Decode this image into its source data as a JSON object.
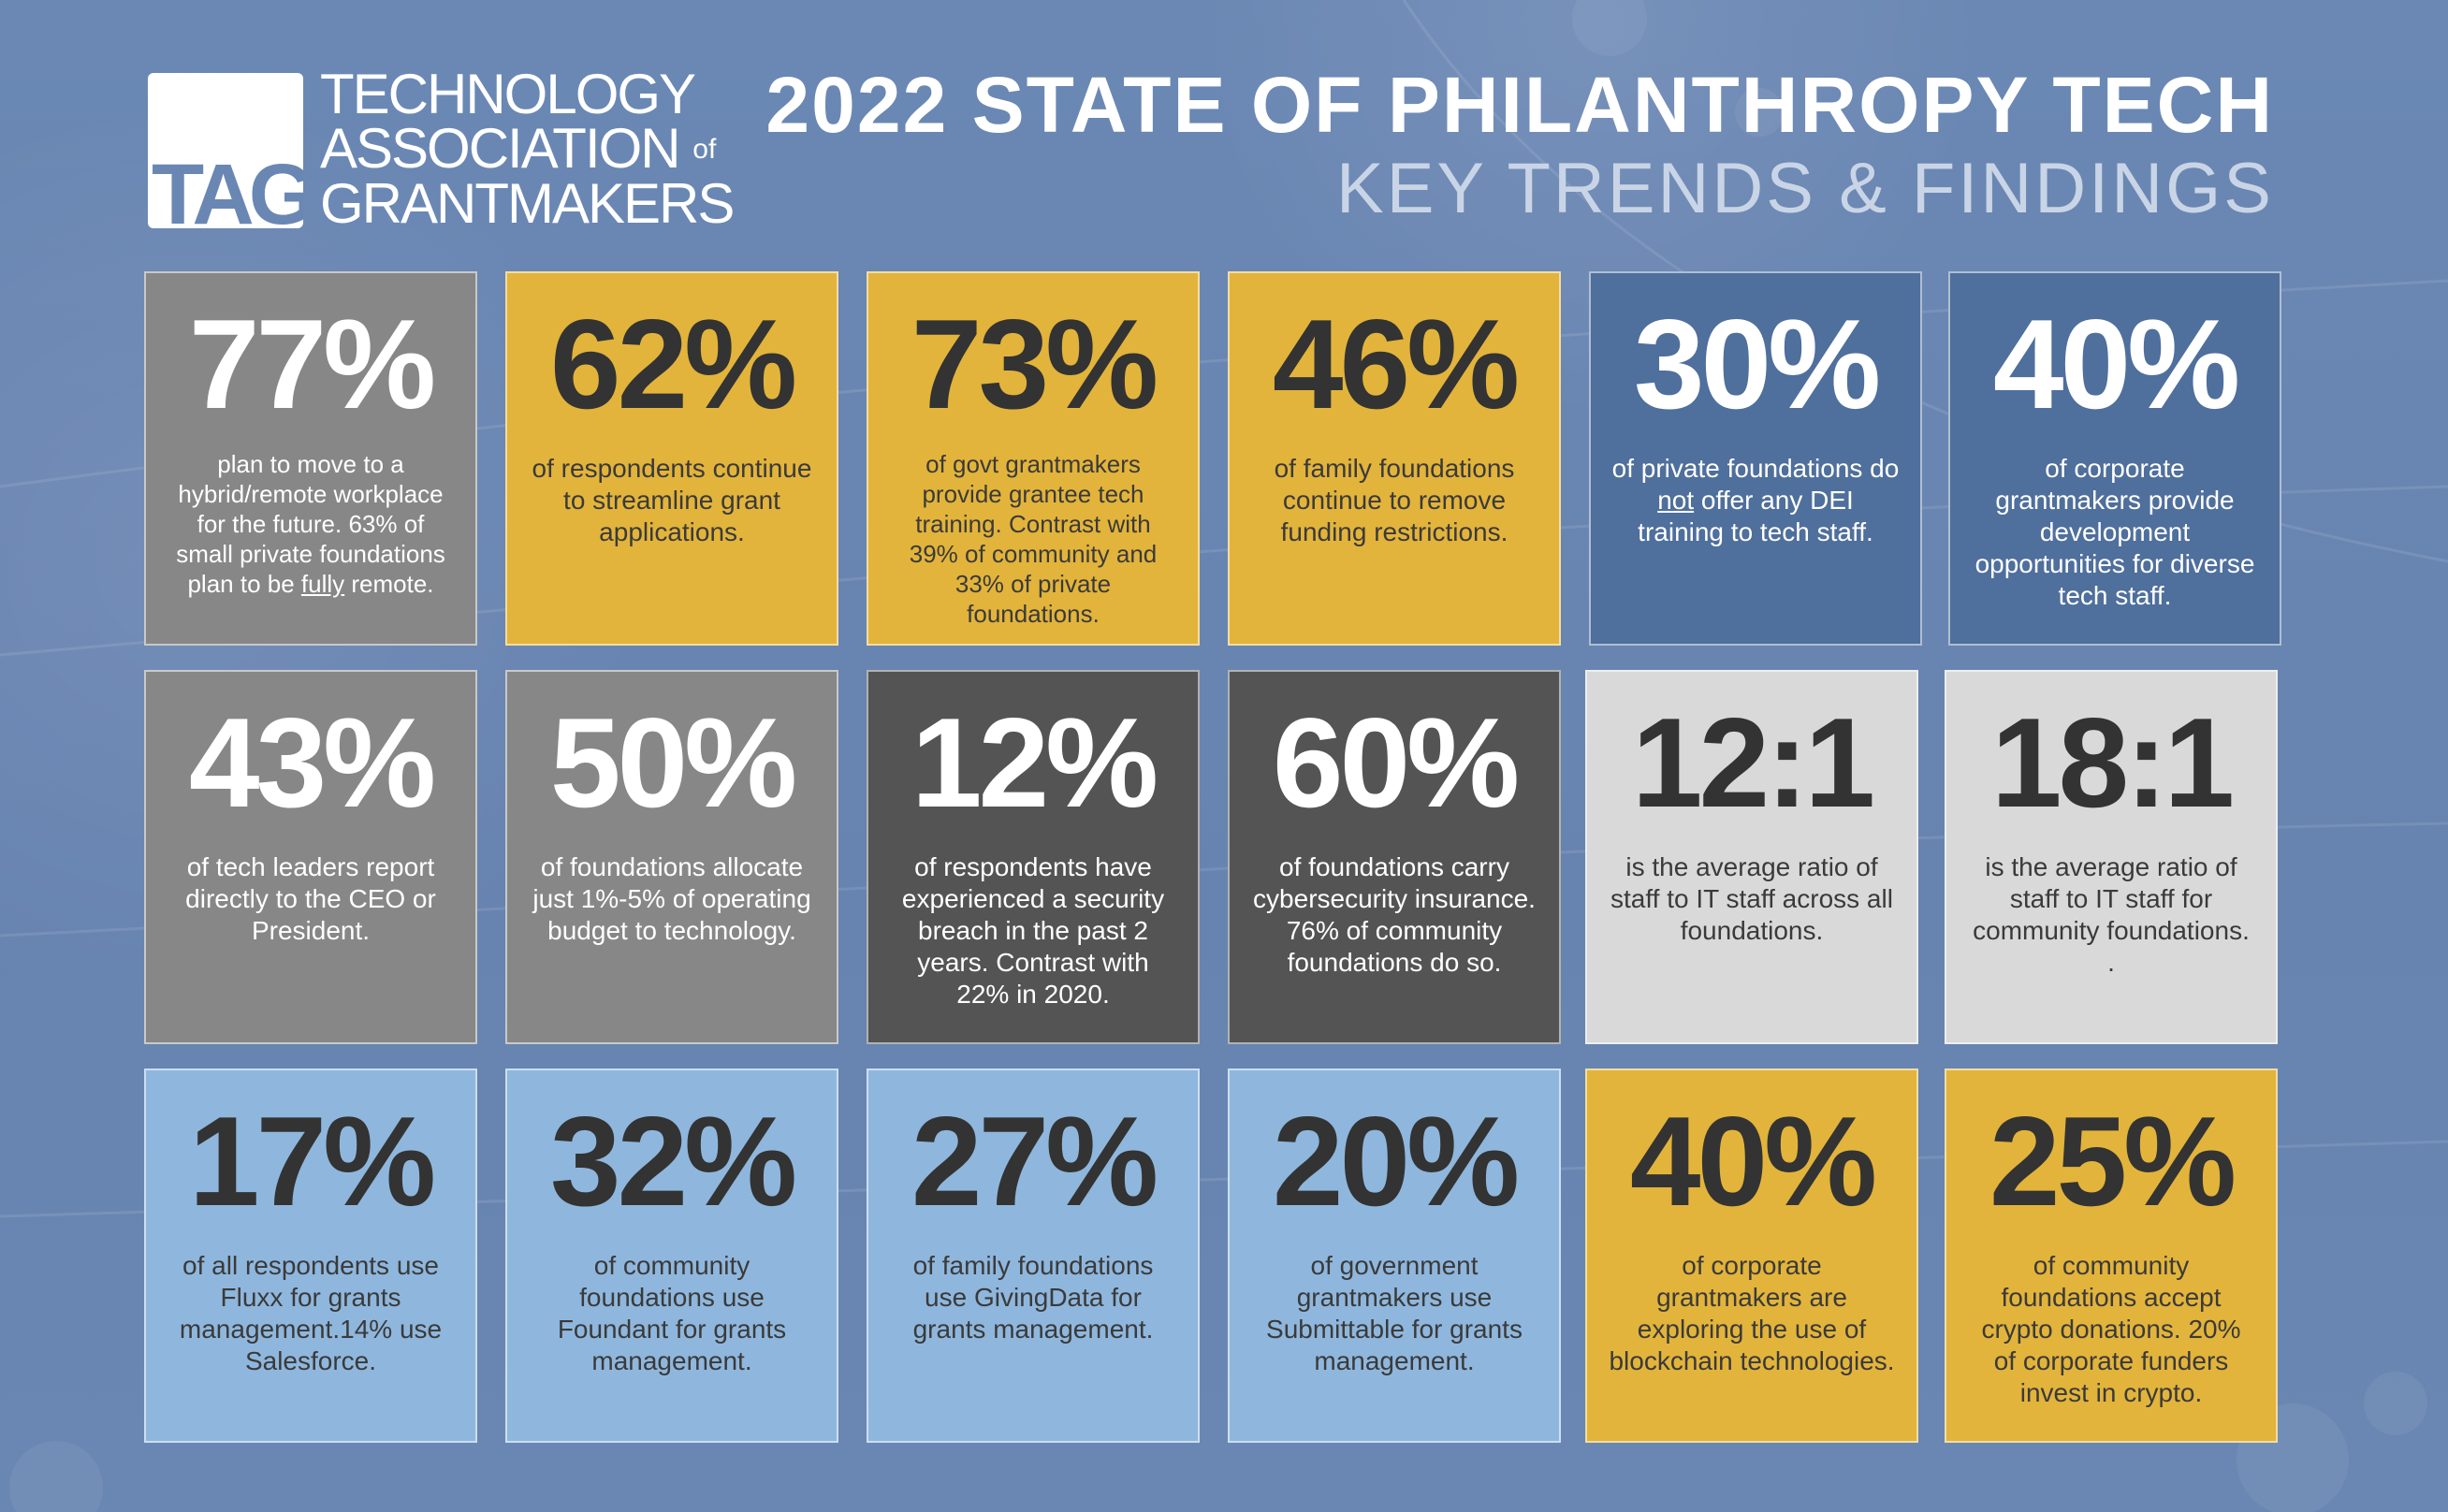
{
  "header": {
    "logo_mark": "TAG",
    "logo_line1": "TECHNOLOGY",
    "logo_line2": "ASSOCIATION",
    "logo_of": "of",
    "logo_line3": "GRANTMAKERS",
    "title": "2022 STATE OF PHILANTHROPY TECH",
    "subtitle": "KEY TRENDS & FINDINGS"
  },
  "colors": {
    "background": "#6a87b3",
    "gray": "#878787",
    "gold": "#e3b43b",
    "blue": "#4f6f9c",
    "dark": "#545454",
    "light": "#d9d9d9",
    "sky": "#8fb7dd"
  },
  "cards": [
    {
      "stat": "77%",
      "pre": "plan to move to a hybrid/remote workplace for the future. 63% of small private foundations plan to be ",
      "u": "fully",
      "post": " remote."
    },
    {
      "stat": "62%",
      "pre": "of respondents continue to streamline grant applications.",
      "u": "",
      "post": ""
    },
    {
      "stat": "73%",
      "pre": "of govt grantmakers provide grantee tech training. Contrast with 39% of community and 33% of private foundations.",
      "u": "",
      "post": ""
    },
    {
      "stat": "46%",
      "pre": "of family foundations continue to remove funding restrictions.",
      "u": "",
      "post": ""
    },
    {
      "stat": "30%",
      "pre": "of private foundations do ",
      "u": "not",
      "post": " offer any DEI training to tech staff."
    },
    {
      "stat": "40%",
      "pre": "of corporate grantmakers provide development opportunities for diverse tech staff.",
      "u": "",
      "post": ""
    },
    {
      "stat": "43%",
      "pre": "of tech leaders report directly to the CEO or President.",
      "u": "",
      "post": ""
    },
    {
      "stat": "50%",
      "pre": "of foundations allocate just 1%-5% of operating budget to technology.",
      "u": "",
      "post": ""
    },
    {
      "stat": "12%",
      "pre": "of respondents have experienced a security breach in the past 2 years. Contrast with 22% in 2020.",
      "u": "",
      "post": ""
    },
    {
      "stat": "60%",
      "pre": "of foundations carry cybersecurity insurance. 76% of community foundations do so.",
      "u": "",
      "post": ""
    },
    {
      "stat": "12:1",
      "pre": "is the average ratio of staff to IT staff across all foundations.",
      "u": "",
      "post": ""
    },
    {
      "stat": "18:1",
      "pre": "is the average ratio of staff to IT staff for community foundations.",
      "u": "",
      "post": "\n."
    },
    {
      "stat": "17%",
      "pre": "of all respondents use Fluxx for grants management.14% use Salesforce.",
      "u": "",
      "post": ""
    },
    {
      "stat": "32%",
      "pre": "of community foundations use Foundant for grants management.",
      "u": "",
      "post": ""
    },
    {
      "stat": "27%",
      "pre": "of family foundations use GivingData for grants management.",
      "u": "",
      "post": ""
    },
    {
      "stat": "20%",
      "pre": "of government grantmakers use Submittable for grants management.",
      "u": "",
      "post": ""
    },
    {
      "stat": "40%",
      "pre": "of corporate grantmakers are exploring the use of blockchain technologies.",
      "u": "",
      "post": ""
    },
    {
      "stat": "25%",
      "pre": "of community foundations accept crypto donations. 20% of corporate funders invest in crypto.",
      "u": "",
      "post": ""
    }
  ]
}
